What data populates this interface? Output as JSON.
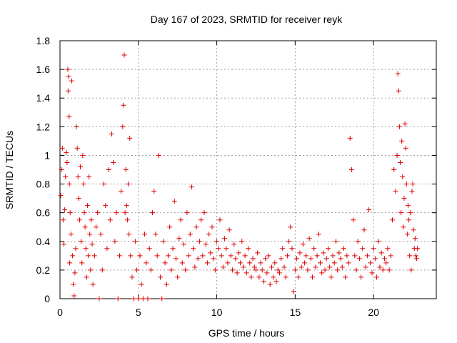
{
  "chart_data": {
    "type": "scatter",
    "title": "Day 167 of 2023, SRMTID for receiver reyk",
    "xlabel": "GPS time / hours",
    "ylabel": "SRMTID / TECUs",
    "xlim": [
      0,
      24
    ],
    "ylim": [
      0,
      1.8
    ],
    "x_ticks": [
      0,
      5,
      10,
      15,
      20
    ],
    "x_tick_labels": [
      "0",
      "5",
      "10",
      "15",
      "20"
    ],
    "y_ticks": [
      0,
      0.2,
      0.4,
      0.6,
      0.8,
      1.0,
      1.2,
      1.4,
      1.6,
      1.8
    ],
    "y_tick_labels": [
      "0",
      "0.2",
      "0.4",
      "0.6",
      "0.8",
      "1",
      "1.2",
      "1.4",
      "1.6",
      "1.8"
    ],
    "grid": true,
    "marker": "plus",
    "series": [
      {
        "name": "SRMTID",
        "color": "#e00000",
        "x": [
          0.05,
          0.1,
          0.15,
          0.2,
          0.25,
          0.3,
          0.35,
          0.4,
          0.45,
          0.5,
          0.52,
          0.55,
          0.58,
          0.6,
          0.62,
          0.65,
          0.7,
          0.75,
          0.8,
          0.85,
          0.9,
          0.95,
          1.0,
          1.05,
          1.1,
          1.15,
          1.2,
          1.25,
          1.3,
          1.35,
          1.4,
          1.45,
          1.5,
          1.55,
          1.6,
          1.65,
          1.7,
          1.75,
          1.8,
          1.85,
          1.9,
          1.95,
          2.0,
          2.05,
          2.1,
          2.2,
          2.3,
          2.4,
          2.5,
          2.6,
          2.7,
          2.8,
          2.9,
          3.0,
          3.1,
          3.2,
          3.3,
          3.4,
          3.5,
          3.6,
          3.7,
          3.8,
          3.9,
          4.0,
          4.05,
          4.1,
          4.15,
          4.2,
          4.25,
          4.3,
          4.35,
          4.4,
          4.45,
          4.5,
          4.6,
          4.7,
          4.8,
          4.9,
          5.0,
          5.1,
          5.2,
          5.3,
          5.4,
          5.5,
          5.6,
          5.7,
          5.8,
          5.9,
          6.0,
          6.1,
          6.2,
          6.3,
          6.4,
          6.5,
          6.6,
          6.7,
          6.8,
          6.9,
          7.0,
          7.1,
          7.2,
          7.3,
          7.4,
          7.5,
          7.6,
          7.7,
          7.8,
          7.9,
          8.0,
          8.1,
          8.2,
          8.3,
          8.4,
          8.5,
          8.6,
          8.7,
          8.8,
          8.9,
          9.0,
          9.1,
          9.2,
          9.3,
          9.4,
          9.5,
          9.6,
          9.7,
          9.8,
          9.9,
          10.0,
          10.1,
          10.2,
          10.3,
          10.4,
          10.5,
          10.6,
          10.7,
          10.8,
          10.9,
          11.0,
          11.1,
          11.2,
          11.3,
          11.4,
          11.5,
          11.6,
          11.7,
          11.8,
          11.9,
          12.0,
          12.1,
          12.2,
          12.3,
          12.4,
          12.5,
          12.6,
          12.7,
          12.8,
          12.9,
          13.0,
          13.1,
          13.2,
          13.3,
          13.4,
          13.5,
          13.6,
          13.7,
          13.8,
          13.9,
          14.0,
          14.1,
          14.2,
          14.3,
          14.4,
          14.5,
          14.6,
          14.7,
          14.8,
          14.9,
          15.0,
          15.1,
          15.2,
          15.3,
          15.4,
          15.5,
          15.6,
          15.7,
          15.8,
          15.9,
          16.0,
          16.1,
          16.2,
          16.3,
          16.4,
          16.5,
          16.6,
          16.7,
          16.8,
          16.9,
          17.0,
          17.1,
          17.2,
          17.3,
          17.4,
          17.5,
          17.6,
          17.7,
          17.8,
          17.9,
          18.0,
          18.1,
          18.2,
          18.3,
          18.4,
          18.5,
          18.6,
          18.7,
          18.8,
          18.9,
          19.0,
          19.1,
          19.2,
          19.3,
          19.4,
          19.5,
          19.6,
          19.7,
          19.8,
          19.9,
          20.0,
          20.1,
          20.2,
          20.3,
          20.4,
          20.5,
          20.6,
          20.7,
          20.8,
          20.9,
          21.0,
          21.1,
          21.2,
          21.3,
          21.4,
          21.5,
          21.55,
          21.6,
          21.65,
          21.7,
          21.75,
          21.8,
          21.85,
          21.9,
          21.95,
          22.0,
          22.05,
          22.1,
          22.15,
          22.2,
          22.25,
          22.3,
          22.35,
          22.4,
          22.45,
          22.5,
          22.55,
          22.6,
          22.65,
          22.7,
          22.75,
          22.8
        ],
        "y": [
          0.72,
          0.9,
          1.05,
          0.55,
          0.38,
          0.62,
          0.85,
          1.02,
          0.95,
          1.6,
          1.45,
          1.55,
          1.27,
          0.8,
          0.25,
          0.6,
          0.45,
          1.52,
          0.3,
          0.1,
          0.02,
          0.18,
          0.35,
          1.2,
          1.05,
          0.85,
          0.7,
          0.55,
          0.92,
          0.4,
          0.25,
          1.0,
          0.8,
          0.6,
          0.5,
          0.35,
          0.15,
          0.65,
          0.3,
          0.85,
          0.45,
          0.2,
          0.55,
          0.38,
          0.1,
          0.3,
          0.5,
          0.6,
          0.0,
          0.45,
          0.2,
          0.8,
          0.65,
          0.35,
          0.9,
          0.55,
          1.15,
          0.95,
          0.4,
          0.6,
          0.0,
          0.3,
          0.75,
          1.2,
          1.35,
          1.7,
          0.6,
          0.9,
          0.65,
          0.55,
          0.8,
          0.45,
          1.12,
          0.3,
          0.15,
          0.0,
          0.4,
          0.2,
          0.0,
          0.3,
          0.1,
          0.0,
          0.45,
          0.25,
          0.0,
          0.35,
          0.2,
          0.6,
          0.75,
          0.45,
          0.3,
          1.0,
          0.15,
          0.0,
          0.4,
          0.25,
          0.1,
          0.3,
          0.5,
          0.2,
          0.35,
          0.68,
          0.28,
          0.15,
          0.42,
          0.55,
          0.25,
          0.38,
          0.2,
          0.6,
          0.3,
          0.45,
          0.78,
          0.35,
          0.22,
          0.5,
          0.28,
          0.4,
          0.55,
          0.3,
          0.6,
          0.38,
          0.25,
          0.45,
          0.32,
          0.5,
          0.28,
          0.2,
          0.4,
          0.35,
          0.55,
          0.3,
          0.22,
          0.42,
          0.35,
          0.25,
          0.48,
          0.3,
          0.2,
          0.38,
          0.28,
          0.18,
          0.32,
          0.25,
          0.4,
          0.22,
          0.3,
          0.18,
          0.35,
          0.25,
          0.15,
          0.28,
          0.22,
          0.2,
          0.32,
          0.15,
          0.25,
          0.2,
          0.12,
          0.28,
          0.18,
          0.3,
          0.1,
          0.22,
          0.15,
          0.25,
          0.12,
          0.2,
          0.18,
          0.28,
          0.35,
          0.22,
          0.15,
          0.3,
          0.4,
          0.5,
          0.35,
          0.05,
          0.2,
          0.28,
          0.15,
          0.32,
          0.22,
          0.38,
          0.25,
          0.3,
          0.2,
          0.42,
          0.28,
          0.15,
          0.35,
          0.22,
          0.3,
          0.45,
          0.25,
          0.18,
          0.32,
          0.2,
          0.28,
          0.35,
          0.22,
          0.15,
          0.3,
          0.25,
          0.4,
          0.2,
          0.32,
          0.28,
          0.22,
          0.35,
          0.15,
          0.3,
          0.25,
          1.12,
          0.9,
          0.55,
          0.3,
          0.2,
          0.4,
          0.28,
          0.15,
          0.35,
          0.48,
          0.22,
          0.3,
          0.62,
          0.25,
          0.18,
          0.35,
          0.28,
          0.15,
          0.4,
          0.22,
          0.32,
          0.2,
          0.28,
          0.25,
          0.35,
          0.2,
          0.3,
          0.55,
          0.9,
          0.75,
          1.0,
          1.57,
          1.45,
          1.2,
          0.95,
          0.6,
          1.1,
          0.85,
          0.5,
          0.7,
          1.22,
          1.05,
          0.8,
          0.45,
          0.65,
          0.55,
          0.3,
          0.6,
          0.2,
          0.75,
          0.8,
          0.48,
          0.35,
          0.42,
          0.3,
          0.28,
          0.35
        ]
      }
    ]
  }
}
